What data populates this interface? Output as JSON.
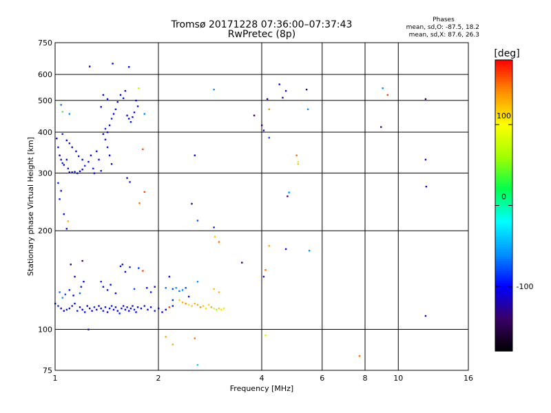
{
  "chart_data": {
    "type": "scatter",
    "title": "Tromsø 20171228 07:36:00–07:37:43",
    "subtitle": "RwPretec (8p)",
    "stats": {
      "heading": "Phases",
      "line1": "mean, sd,O: -87.5, 18.2",
      "line2": "mean, sd,X:  87.6, 26.3"
    },
    "xlabel": "Frequency [MHz]",
    "ylabel": "Stationary phase Virtual Height [km]",
    "x_scale": "log",
    "y_scale": "log",
    "xlim": [
      1,
      16
    ],
    "ylim": [
      75,
      750
    ],
    "x_ticks": [
      1,
      2,
      4,
      6,
      8,
      10,
      16
    ],
    "y_ticks": [
      75,
      100,
      200,
      300,
      400,
      500,
      600,
      750
    ],
    "grid": true,
    "colorbar": {
      "label": "[deg]",
      "range": [
        -180,
        180
      ],
      "ticks": [
        100,
        0,
        -100
      ],
      "colormap": [
        "#000000",
        "#3a0066",
        "#0000ff",
        "#0090ff",
        "#00ffff",
        "#00ff50",
        "#a0ff00",
        "#ffff00",
        "#ff9000",
        "#ff0000"
      ]
    },
    "points": [
      [
        1.01,
        383,
        -100
      ],
      [
        1.02,
        360,
        -95
      ],
      [
        1.03,
        340,
        -110
      ],
      [
        1.04,
        330,
        -100
      ],
      [
        1.05,
        322,
        -90
      ],
      [
        1.06,
        318,
        -105
      ],
      [
        1.08,
        330,
        -100
      ],
      [
        1.09,
        310,
        -95
      ],
      [
        1.1,
        302,
        -110
      ],
      [
        1.12,
        302,
        -100
      ],
      [
        1.14,
        303,
        -95
      ],
      [
        1.16,
        300,
        -100
      ],
      [
        1.18,
        304,
        -110
      ],
      [
        1.2,
        308,
        -100
      ],
      [
        1.22,
        316,
        -90
      ],
      [
        1.25,
        325,
        -100
      ],
      [
        1.27,
        340,
        -105
      ],
      [
        1.29,
        310,
        -95
      ],
      [
        1.3,
        300,
        -100
      ],
      [
        1.05,
        395,
        -90
      ],
      [
        1.08,
        378,
        -100
      ],
      [
        1.1,
        370,
        -95
      ],
      [
        1.12,
        360,
        -105
      ],
      [
        1.15,
        350,
        -100
      ],
      [
        1.17,
        338,
        -95
      ],
      [
        1.2,
        330,
        -100
      ],
      [
        1.02,
        280,
        -90
      ],
      [
        1.04,
        265,
        -100
      ],
      [
        1.03,
        250,
        -95
      ],
      [
        1.06,
        225,
        -100
      ],
      [
        1.08,
        203,
        -110
      ],
      [
        1.04,
        485,
        -70
      ],
      [
        1.05,
        462,
        40
      ],
      [
        1.1,
        455,
        -60
      ],
      [
        1.09,
        214,
        130
      ],
      [
        1.38,
        395,
        -100
      ],
      [
        1.4,
        410,
        -95
      ],
      [
        1.42,
        400,
        -105
      ],
      [
        1.44,
        420,
        -100
      ],
      [
        1.46,
        440,
        -90
      ],
      [
        1.48,
        455,
        -100
      ],
      [
        1.5,
        470,
        -95
      ],
      [
        1.52,
        495,
        -105
      ],
      [
        1.55,
        520,
        -100
      ],
      [
        1.58,
        508,
        -95
      ],
      [
        1.6,
        535,
        -100
      ],
      [
        1.62,
        450,
        -100
      ],
      [
        1.64,
        440,
        -105
      ],
      [
        1.66,
        430,
        -95
      ],
      [
        1.68,
        445,
        -100
      ],
      [
        1.7,
        460,
        -105
      ],
      [
        1.72,
        500,
        -100
      ],
      [
        1.74,
        480,
        -95
      ],
      [
        1.4,
        380,
        -100
      ],
      [
        1.42,
        360,
        -95
      ],
      [
        1.44,
        340,
        -100
      ],
      [
        1.46,
        320,
        -105
      ],
      [
        1.36,
        305,
        -95
      ],
      [
        1.62,
        290,
        -100
      ],
      [
        1.65,
        282,
        -95
      ],
      [
        1.32,
        350,
        -100
      ],
      [
        1.34,
        330,
        -105
      ],
      [
        1.36,
        478,
        -110
      ],
      [
        1.38,
        520,
        -100
      ],
      [
        1.42,
        505,
        -95
      ],
      [
        1.26,
        635,
        -110
      ],
      [
        1.47,
        648,
        -100
      ],
      [
        1.64,
        633,
        -105
      ],
      [
        1.75,
        545,
        70
      ],
      [
        1.82,
        455,
        -60
      ],
      [
        1.8,
        355,
        160
      ],
      [
        1.82,
        263,
        160
      ],
      [
        1.76,
        243,
        150
      ],
      [
        2.5,
        242,
        -130
      ],
      [
        2.55,
        340,
        -100
      ],
      [
        2.6,
        215,
        -80
      ],
      [
        2.9,
        540,
        -60
      ],
      [
        2.9,
        205,
        -90
      ],
      [
        3.8,
        450,
        -150
      ],
      [
        4.0,
        420,
        -140
      ],
      [
        4.05,
        405,
        -120
      ],
      [
        4.15,
        505,
        -130
      ],
      [
        4.2,
        470,
        140
      ],
      [
        4.2,
        385,
        -80
      ],
      [
        4.5,
        560,
        -100
      ],
      [
        4.6,
        510,
        -120
      ],
      [
        4.7,
        535,
        -110
      ],
      [
        5.05,
        340,
        150
      ],
      [
        5.1,
        325,
        110
      ],
      [
        5.1,
        320,
        120
      ],
      [
        4.75,
        255,
        -140
      ],
      [
        4.8,
        262,
        -60
      ],
      [
        5.4,
        540,
        -130
      ],
      [
        5.45,
        470,
        -60
      ],
      [
        9.0,
        545,
        -60
      ],
      [
        9.3,
        520,
        160
      ],
      [
        8.9,
        415,
        -130
      ],
      [
        12.0,
        505,
        -140
      ],
      [
        12.0,
        330,
        -120
      ],
      [
        12.05,
        273,
        -110
      ],
      [
        1.0,
        120,
        -100
      ],
      [
        1.02,
        118,
        -90
      ],
      [
        1.04,
        116,
        -105
      ],
      [
        1.06,
        114,
        -100
      ],
      [
        1.08,
        115,
        -95
      ],
      [
        1.1,
        116,
        -100
      ],
      [
        1.12,
        118,
        -110
      ],
      [
        1.14,
        120,
        -100
      ],
      [
        1.16,
        114,
        -95
      ],
      [
        1.18,
        117,
        -105
      ],
      [
        1.2,
        115,
        -100
      ],
      [
        1.22,
        113,
        -95
      ],
      [
        1.24,
        118,
        -100
      ],
      [
        1.26,
        116,
        -105
      ],
      [
        1.28,
        114,
        -100
      ],
      [
        1.3,
        117,
        -95
      ],
      [
        1.32,
        115,
        -100
      ],
      [
        1.34,
        118,
        -110
      ],
      [
        1.36,
        116,
        -100
      ],
      [
        1.38,
        114,
        -95
      ],
      [
        1.4,
        117,
        -100
      ],
      [
        1.42,
        113,
        -105
      ],
      [
        1.44,
        116,
        -100
      ],
      [
        1.46,
        118,
        -95
      ],
      [
        1.48,
        115,
        -100
      ],
      [
        1.5,
        117,
        -105
      ],
      [
        1.52,
        114,
        -100
      ],
      [
        1.54,
        112,
        -95
      ],
      [
        1.56,
        116,
        -100
      ],
      [
        1.58,
        118,
        -110
      ],
      [
        1.6,
        115,
        -100
      ],
      [
        1.62,
        117,
        -95
      ],
      [
        1.64,
        114,
        -100
      ],
      [
        1.66,
        116,
        -105
      ],
      [
        1.68,
        118,
        -100
      ],
      [
        1.7,
        115,
        -95
      ],
      [
        1.72,
        113,
        -100
      ],
      [
        1.74,
        117,
        -105
      ],
      [
        1.78,
        116,
        -100
      ],
      [
        1.82,
        118,
        -95
      ],
      [
        1.86,
        115,
        -100
      ],
      [
        1.9,
        117,
        -100
      ],
      [
        1.95,
        114,
        -95
      ],
      [
        2.0,
        116,
        -100
      ],
      [
        2.05,
        113,
        -105
      ],
      [
        2.1,
        115,
        -100
      ],
      [
        2.15,
        117,
        160
      ],
      [
        2.2,
        118,
        -100
      ],
      [
        1.03,
        130,
        -70
      ],
      [
        1.05,
        125,
        -60
      ],
      [
        1.07,
        128,
        -80
      ],
      [
        1.1,
        132,
        -90
      ],
      [
        1.13,
        127,
        -100
      ],
      [
        1.18,
        129,
        -70
      ],
      [
        1.21,
        140,
        -100
      ],
      [
        1.14,
        145,
        -110
      ],
      [
        1.19,
        135,
        -95
      ],
      [
        1.2,
        162,
        -140
      ],
      [
        1.11,
        158,
        -120
      ],
      [
        1.25,
        100,
        -120
      ],
      [
        1.36,
        140,
        -90
      ],
      [
        1.38,
        135,
        -100
      ],
      [
        1.42,
        132,
        -95
      ],
      [
        1.45,
        137,
        -100
      ],
      [
        1.5,
        129,
        -105
      ],
      [
        1.55,
        156,
        -100
      ],
      [
        1.57,
        158,
        -95
      ],
      [
        1.6,
        150,
        -100
      ],
      [
        1.65,
        155,
        -90
      ],
      [
        1.7,
        133,
        -80
      ],
      [
        1.75,
        154,
        -90
      ],
      [
        1.8,
        151,
        160
      ],
      [
        1.85,
        134,
        -100
      ],
      [
        1.9,
        130,
        -95
      ],
      [
        1.95,
        135,
        -100
      ],
      [
        2.1,
        134,
        -70
      ],
      [
        2.15,
        145,
        -100
      ],
      [
        2.2,
        133,
        -80
      ],
      [
        2.25,
        134,
        -60
      ],
      [
        2.3,
        131,
        -70
      ],
      [
        2.35,
        132,
        -60
      ],
      [
        2.4,
        134,
        -80
      ],
      [
        2.45,
        126,
        -100
      ],
      [
        2.6,
        140,
        -60
      ],
      [
        2.2,
        123,
        -90
      ],
      [
        2.3,
        123,
        120
      ],
      [
        2.35,
        121,
        130
      ],
      [
        2.4,
        120,
        140
      ],
      [
        2.45,
        119,
        110
      ],
      [
        2.5,
        118,
        120
      ],
      [
        2.55,
        120,
        125
      ],
      [
        2.6,
        119,
        130
      ],
      [
        2.65,
        117,
        140
      ],
      [
        2.7,
        118,
        120
      ],
      [
        2.75,
        116,
        110
      ],
      [
        2.8,
        119,
        115
      ],
      [
        2.85,
        117,
        130
      ],
      [
        2.9,
        116,
        80
      ],
      [
        2.95,
        115,
        60
      ],
      [
        3.0,
        116,
        120
      ],
      [
        3.05,
        115,
        110
      ],
      [
        3.1,
        116,
        80
      ],
      [
        2.9,
        133,
        120
      ],
      [
        3.0,
        130,
        125
      ],
      [
        2.92,
        192,
        120
      ],
      [
        3.0,
        185,
        150
      ],
      [
        2.1,
        95,
        130
      ],
      [
        2.2,
        90,
        130
      ],
      [
        2.55,
        94,
        150
      ],
      [
        2.6,
        78,
        -40
      ],
      [
        3.5,
        160,
        -150
      ],
      [
        4.05,
        145,
        -120
      ],
      [
        4.1,
        152,
        150
      ],
      [
        4.2,
        180,
        130
      ],
      [
        4.1,
        96,
        80
      ],
      [
        4.7,
        176,
        -110
      ],
      [
        5.5,
        174,
        -60
      ],
      [
        7.7,
        83,
        150
      ],
      [
        12.0,
        110,
        -120
      ]
    ]
  }
}
